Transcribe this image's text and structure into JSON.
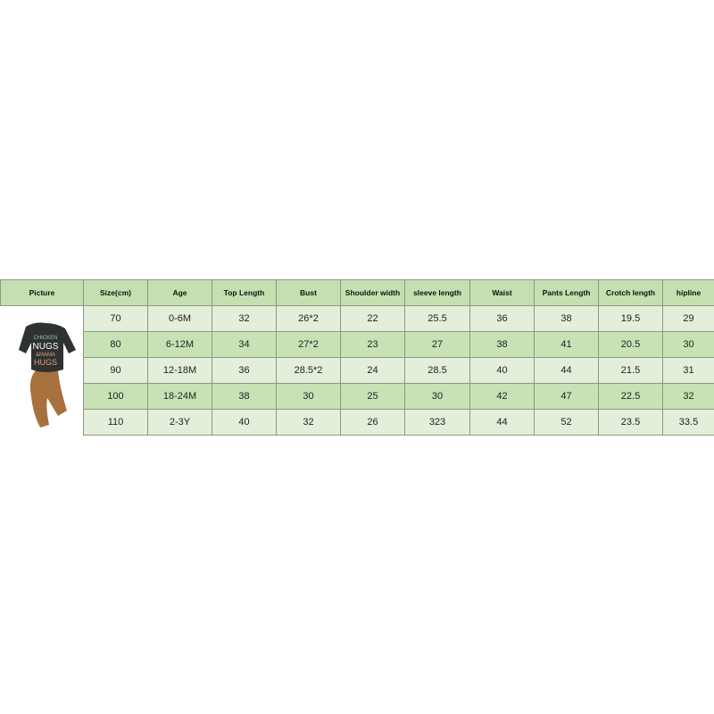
{
  "headers": [
    "Picture",
    "Size(cm)",
    "Age",
    "Top Length",
    "Bust",
    "Shoulder width",
    "sleeve length",
    "Waist",
    "Pants Length",
    "Crotch length",
    "hipline"
  ],
  "rows": [
    [
      "70",
      "0-6M",
      "32",
      "26*2",
      "22",
      "25.5",
      "36",
      "38",
      "19.5",
      "29"
    ],
    [
      "80",
      "6-12M",
      "34",
      "27*2",
      "23",
      "27",
      "38",
      "41",
      "20.5",
      "30"
    ],
    [
      "90",
      "12-18M",
      "36",
      "28.5*2",
      "24",
      "28.5",
      "40",
      "44",
      "21.5",
      "31"
    ],
    [
      "100",
      "18-24M",
      "38",
      "30",
      "25",
      "30",
      "42",
      "47",
      "22.5",
      "32"
    ],
    [
      "110",
      "2-3Y",
      "40",
      "32",
      "26",
      "323",
      "44",
      "52",
      "23.5",
      "33.5"
    ]
  ],
  "product_image": {
    "print_text": [
      "CHICKEN",
      "NUGS",
      "&MAMA",
      "HUGS"
    ],
    "top_color": "#2e3230",
    "pants_color": "#a8703c"
  },
  "colors": {
    "header": "#c5e0b0",
    "row_light": "#e3efda",
    "row_dark": "#c8e2b6"
  }
}
